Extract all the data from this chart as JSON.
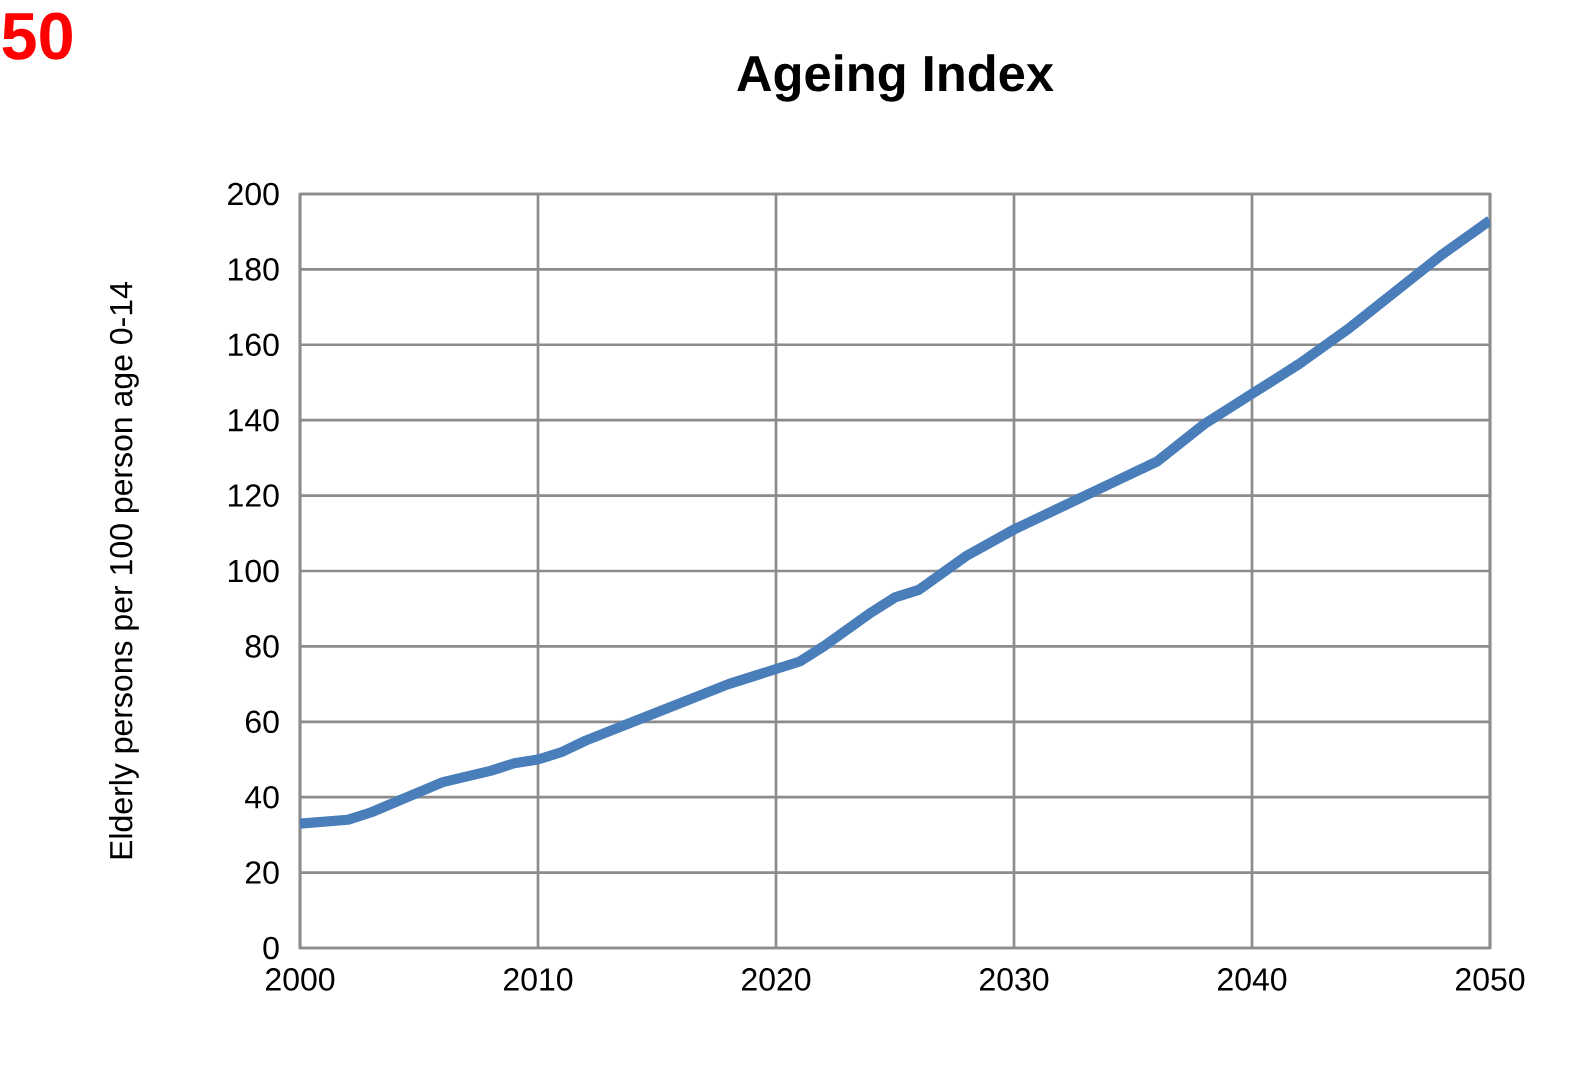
{
  "chart_data": {
    "type": "line",
    "title": "Ageing Index",
    "ylabel": "Elderly persons per 100 person age 0-14",
    "x": [
      2000,
      2002,
      2003,
      2006,
      2008,
      2009,
      2010,
      2011,
      2012,
      2014,
      2016,
      2018,
      2020,
      2021,
      2022,
      2024,
      2025,
      2026,
      2028,
      2030,
      2032,
      2034,
      2036,
      2038,
      2040,
      2042,
      2044,
      2046,
      2048,
      2050
    ],
    "values": [
      33,
      34,
      36,
      44,
      47,
      49,
      50,
      52,
      55,
      60,
      65,
      70,
      74,
      76,
      80,
      89,
      93,
      95,
      104,
      111,
      117,
      123,
      129,
      139,
      147,
      155,
      164,
      174,
      184,
      193
    ],
    "color": "#4a7ebb",
    "xlim": [
      2000,
      2050
    ],
    "ylim": [
      0,
      200
    ],
    "xticks": [
      2000,
      2010,
      2020,
      2030,
      2040,
      2050
    ],
    "yticks": [
      0,
      20,
      40,
      60,
      80,
      100,
      120,
      140,
      160,
      180,
      200
    ],
    "grid": true,
    "annotations": [
      "50"
    ]
  }
}
